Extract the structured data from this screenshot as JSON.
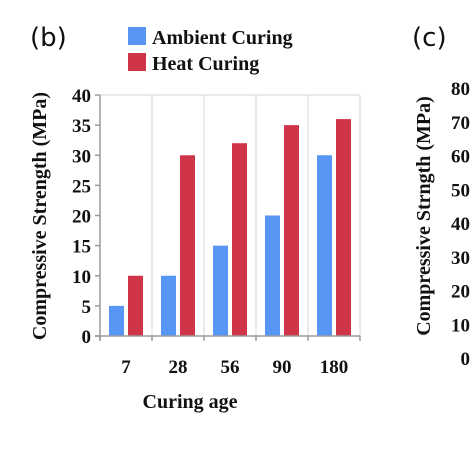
{
  "panel_labels": {
    "left": "(b)",
    "right": "(c)"
  },
  "colors": {
    "ambient": "#5796f4",
    "heat": "#cf3448",
    "axis": "#9a9a9a",
    "grid": "#d6d6d6"
  },
  "chart_data": [
    {
      "type": "bar",
      "panel": "(b)",
      "categories": [
        "7",
        "28",
        "56",
        "90",
        "180"
      ],
      "series": [
        {
          "name": "Ambient Curing",
          "values": [
            5,
            10,
            15,
            20,
            30
          ]
        },
        {
          "name": "Heat Curing",
          "values": [
            10,
            30,
            32,
            35,
            36
          ]
        }
      ],
      "xlabel": "Curing age",
      "ylabel": "Compressive Strength (MPa)",
      "ylim": [
        0,
        40
      ],
      "yticks": [
        "0",
        "5",
        "10",
        "15",
        "20",
        "25",
        "30",
        "35",
        "40"
      ],
      "grid": "vertical",
      "legend": "top-right"
    },
    {
      "type": "bar",
      "panel": "(c)",
      "ylabel": "Compressive Strngth (MPa)",
      "ylim": [
        0,
        80
      ],
      "yticks": [
        "0",
        "10",
        "20",
        "30",
        "40",
        "50",
        "60",
        "70",
        "80"
      ]
    }
  ]
}
